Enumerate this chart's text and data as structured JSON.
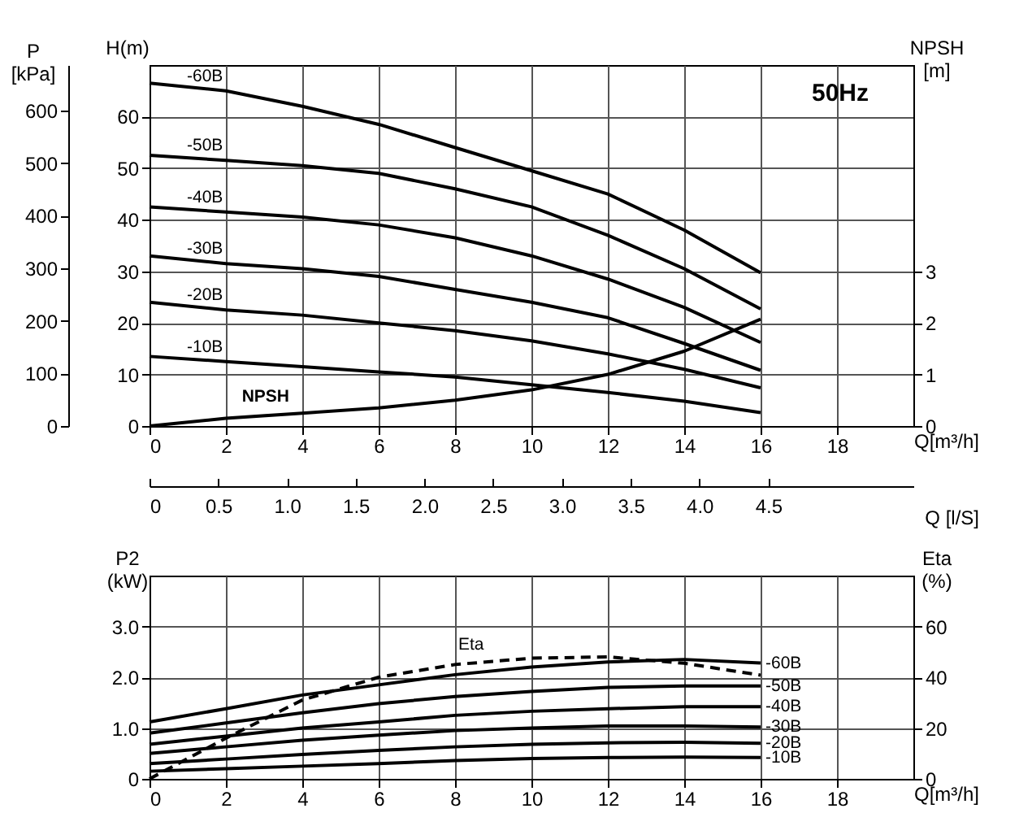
{
  "chart_data": [
    {
      "type": "line",
      "annotations": [
        "50Hz"
      ],
      "xlabel": "Q[m³/h]",
      "x2label": "Q [l/S]",
      "ylabel": "H(m)",
      "y2label": "P [kPa]",
      "y3label": "NPSH [m]",
      "xlim": [
        0,
        20
      ],
      "xticks": [
        0,
        2,
        4,
        6,
        8,
        10,
        12,
        14,
        16,
        18
      ],
      "x2lim": [
        0,
        5.556
      ],
      "x2ticks": [
        0,
        0.5,
        {
          "value": 1,
          "label": "1.0"
        },
        1.5,
        {
          "value": 2,
          "label": "2.0"
        },
        2.5,
        {
          "value": 3,
          "label": "3.0"
        },
        3.5,
        {
          "value": 4,
          "label": "4.0"
        },
        4.5
      ],
      "ylim": [
        0,
        70
      ],
      "yticks": [
        0,
        10,
        20,
        30,
        40,
        50,
        60
      ],
      "y2lim": [
        0,
        687
      ],
      "y2ticks": [
        0,
        100,
        200,
        300,
        400,
        500,
        600
      ],
      "y3lim": [
        0,
        7
      ],
      "y3ticks": [
        0,
        1,
        2,
        3
      ],
      "grid": true,
      "marker": "none",
      "line_style": "solid",
      "x": [
        0,
        2,
        4,
        6,
        8,
        10,
        12,
        14,
        16
      ],
      "series": [
        {
          "name": "-60B",
          "color": "#000000",
          "values": [
            66.5,
            65,
            62,
            58.5,
            54,
            49.5,
            45,
            38,
            29.7
          ]
        },
        {
          "name": "-50B",
          "color": "#000000",
          "values": [
            52.5,
            51.5,
            50.5,
            49,
            46,
            42.5,
            37,
            30.5,
            22.7
          ]
        },
        {
          "name": "-40B",
          "color": "#000000",
          "values": [
            42.5,
            41.5,
            40.5,
            39,
            36.5,
            33,
            28.5,
            23,
            16.2
          ]
        },
        {
          "name": "-30B",
          "color": "#000000",
          "values": [
            33,
            31.5,
            30.5,
            29,
            26.5,
            24,
            21,
            16,
            10.8
          ]
        },
        {
          "name": "-20B",
          "color": "#000000",
          "values": [
            24,
            22.5,
            21.5,
            20,
            18.5,
            16.5,
            14,
            11,
            7.4
          ]
        },
        {
          "name": "-10B",
          "color": "#000000",
          "values": [
            13.5,
            12.5,
            11.5,
            10.5,
            9.5,
            8,
            6.5,
            4.8,
            2.6
          ]
        },
        {
          "name": "NPSH",
          "color": "#000000",
          "axis": "y3",
          "values": [
            0,
            0.15,
            0.25,
            0.35,
            0.5,
            0.7,
            1.0,
            1.45,
            2.07
          ]
        }
      ]
    },
    {
      "type": "line",
      "xlabel": "Q[m³/h]",
      "ylabel": "P2 (kW)",
      "y2label": "Eta (%)",
      "xlim": [
        0,
        20
      ],
      "xticks": [
        0,
        2,
        4,
        6,
        8,
        10,
        12,
        14,
        16,
        18
      ],
      "ylim": [
        0,
        4
      ],
      "yticks": [
        0,
        {
          "value": 1,
          "label": "1.0"
        },
        {
          "value": 2,
          "label": "2.0"
        },
        {
          "value": 3,
          "label": "3.0"
        }
      ],
      "y2lim": [
        0,
        80
      ],
      "y2ticks": [
        0,
        20,
        40,
        60
      ],
      "grid": true,
      "marker": "none",
      "line_style": "solid",
      "x": [
        0,
        2,
        4,
        6,
        8,
        10,
        12,
        14,
        16
      ],
      "series": [
        {
          "name": "-60B",
          "color": "#000000",
          "values": [
            1.12,
            1.38,
            1.65,
            1.85,
            2.05,
            2.2,
            2.3,
            2.35,
            2.28
          ]
        },
        {
          "name": "-50B",
          "color": "#000000",
          "values": [
            0.9,
            1.1,
            1.3,
            1.48,
            1.62,
            1.72,
            1.8,
            1.83,
            1.83
          ]
        },
        {
          "name": "-40B",
          "color": "#000000",
          "values": [
            0.68,
            0.84,
            1.0,
            1.12,
            1.25,
            1.33,
            1.38,
            1.42,
            1.42
          ]
        },
        {
          "name": "-30B",
          "color": "#000000",
          "values": [
            0.5,
            0.63,
            0.76,
            0.86,
            0.95,
            1.0,
            1.04,
            1.04,
            1.02
          ]
        },
        {
          "name": "-20B",
          "color": "#000000",
          "values": [
            0.3,
            0.39,
            0.48,
            0.56,
            0.63,
            0.68,
            0.71,
            0.72,
            0.7
          ]
        },
        {
          "name": "-10B",
          "color": "#000000",
          "values": [
            0.15,
            0.2,
            0.25,
            0.3,
            0.36,
            0.4,
            0.42,
            0.43,
            0.42
          ]
        },
        {
          "name": "Eta",
          "color": "#000000",
          "axis": "y2",
          "line_style": "dashed",
          "values": [
            0,
            16,
            31,
            40,
            45,
            47.5,
            48,
            45.5,
            40.8
          ]
        }
      ]
    }
  ]
}
